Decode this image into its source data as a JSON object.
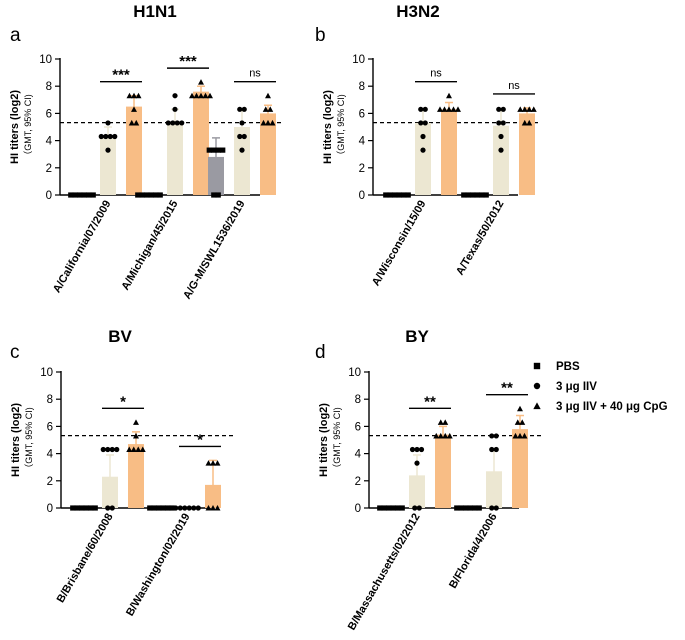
{
  "legend": {
    "entries": [
      {
        "label": "PBS",
        "shape": "square"
      },
      {
        "label": "3 μg IIV",
        "shape": "circle"
      },
      {
        "label": "3 μg IIV + 40 μg CpG",
        "shape": "triangle"
      }
    ]
  },
  "colors": {
    "pbs": "#9a9aa2",
    "iiv": "#ece7d2",
    "cpg": "#f8bd85",
    "marker": "#000000",
    "threshold": "#000000"
  },
  "chart_data": [
    {
      "type": "bar",
      "panel_letter": "a",
      "title": "H1N1",
      "ylabel": "HI titers (log2)",
      "ylabel2": "（GMT,  95% CI)",
      "ylim": [
        0,
        10
      ],
      "yticks": [
        "0",
        "2",
        "4",
        "6",
        "8",
        "10"
      ],
      "threshold": 5.32,
      "categories": [
        "A/California/07/2009",
        "A/Michigan/45/2015",
        "A/G-M/SWL1536/2019"
      ],
      "series": [
        {
          "name": "PBS",
          "values": [
            0,
            0,
            2.8
          ],
          "errors": [
            0,
            0,
            1.4
          ],
          "points": [
            [
              0,
              0,
              0,
              0,
              0,
              0
            ],
            [
              0,
              0,
              0,
              0,
              0,
              0
            ],
            [
              0,
              3.3,
              3.3,
              3.3,
              3.3,
              0
            ]
          ]
        },
        {
          "name": "3 μg IIV",
          "values": [
            4.3,
            5.3,
            5.0
          ],
          "errors": [
            0.7,
            1.0,
            1.3
          ],
          "points": [
            [
              5.3,
              4.3,
              4.3,
              4.3,
              4.3,
              3.3
            ],
            [
              7.3,
              6.3,
              5.3,
              5.3,
              5.3,
              5.3
            ],
            [
              6.3,
              6.3,
              5.3,
              4.3,
              4.3,
              3.3
            ]
          ]
        },
        {
          "name": "3 μg IIV + 40 μg CpG",
          "values": [
            6.5,
            7.6,
            6.0
          ],
          "errors": [
            0.8,
            0.4,
            0.6
          ],
          "points": [
            [
              7.3,
              7.3,
              7.3,
              6.3,
              5.3,
              5.3
            ],
            [
              8.3,
              7.3,
              7.3,
              7.3,
              7.3,
              7.3
            ],
            [
              7.3,
              6.3,
              6.3,
              5.3,
              5.3,
              5.3
            ]
          ]
        }
      ],
      "significance": [
        "***",
        "***",
        "ns"
      ]
    },
    {
      "type": "bar",
      "panel_letter": "b",
      "title": "H3N2",
      "ylabel": "HI titers (log2)",
      "ylabel2": "（GMT,  95% CI)",
      "ylim": [
        0,
        10
      ],
      "yticks": [
        "0",
        "2",
        "4",
        "6",
        "8",
        "10"
      ],
      "threshold": 5.32,
      "categories": [
        "A/Wisconsin/15/09",
        "A/Texas/50/2012"
      ],
      "series": [
        {
          "name": "PBS",
          "values": [
            0,
            0
          ],
          "errors": [
            0,
            0
          ],
          "points": [
            [
              0,
              0,
              0,
              0,
              0,
              0
            ],
            [
              0,
              0,
              0,
              0,
              0,
              0
            ]
          ]
        },
        {
          "name": "3 μg IIV",
          "values": [
            5.3,
            5.1
          ],
          "errors": [
            0.9,
            1.1
          ],
          "points": [
            [
              6.3,
              6.3,
              5.3,
              5.3,
              4.3,
              3.3
            ],
            [
              6.3,
              6.3,
              5.3,
              5.3,
              4.3,
              3.3
            ]
          ]
        },
        {
          "name": "3 μg IIV + 40 μg CpG",
          "values": [
            6.3,
            6.0
          ],
          "errors": [
            0.5,
            0.4
          ],
          "points": [
            [
              7.3,
              6.3,
              6.3,
              6.3,
              6.3,
              6.3
            ],
            [
              6.3,
              6.3,
              6.3,
              6.3,
              5.3,
              5.3
            ]
          ]
        }
      ],
      "significance": [
        "ns",
        "ns"
      ]
    },
    {
      "type": "bar",
      "panel_letter": "c",
      "title": "BV",
      "ylabel": "HI titers (log2)",
      "ylabel2": "（GMT,  95% CI)",
      "ylim": [
        0,
        10
      ],
      "yticks": [
        "0",
        "2",
        "4",
        "6",
        "8",
        "10"
      ],
      "threshold": 5.32,
      "categories": [
        "B/Brisbane/60/2008",
        "B/Washington/02/2019"
      ],
      "series": [
        {
          "name": "PBS",
          "values": [
            0,
            0
          ],
          "errors": [
            0,
            0
          ],
          "points": [
            [
              0,
              0,
              0,
              0,
              0,
              0
            ],
            [
              0,
              0,
              0,
              0,
              0,
              0
            ]
          ]
        },
        {
          "name": "3 μg IIV",
          "values": [
            2.3,
            0
          ],
          "errors": [
            1.6,
            0
          ],
          "points": [
            [
              4.3,
              4.3,
              4.3,
              4.3,
              0,
              0
            ],
            [
              0,
              0,
              0,
              0,
              0,
              0
            ]
          ]
        },
        {
          "name": "3 μg IIV + 40 μg CpG",
          "values": [
            4.7,
            1.7
          ],
          "errors": [
            0.9,
            1.8
          ],
          "points": [
            [
              6.3,
              5.3,
              4.3,
              4.3,
              4.3,
              4.3
            ],
            [
              3.3,
              3.3,
              3.3,
              0,
              0,
              0
            ]
          ]
        }
      ],
      "significance": [
        "*",
        "*"
      ]
    },
    {
      "type": "bar",
      "panel_letter": "d",
      "title": "BY",
      "ylabel": "HI titers (log2)",
      "ylabel2": "（GMT,  95% CI)",
      "ylim": [
        0,
        10
      ],
      "yticks": [
        "0",
        "2",
        "4",
        "6",
        "8",
        "10"
      ],
      "threshold": 5.32,
      "categories": [
        "B/Massachusetts/02/2012",
        "B/Florida/4/2006"
      ],
      "series": [
        {
          "name": "PBS",
          "values": [
            0,
            0
          ],
          "errors": [
            0,
            0
          ],
          "points": [
            [
              0,
              0,
              0,
              0,
              0,
              0
            ],
            [
              0,
              0,
              0,
              0,
              0,
              0
            ]
          ]
        },
        {
          "name": "3 μg IIV",
          "values": [
            2.4,
            2.7
          ],
          "errors": [
            1.5,
            1.6
          ],
          "points": [
            [
              4.3,
              4.3,
              4.3,
              3.3,
              0,
              0
            ],
            [
              5.3,
              5.3,
              4.3,
              4.3,
              0,
              0
            ]
          ]
        },
        {
          "name": "3 μg IIV + 40 μg CpG",
          "values": [
            5.4,
            5.8
          ],
          "errors": [
            0.6,
            1.0
          ],
          "points": [
            [
              6.3,
              6.3,
              5.3,
              5.3,
              5.3,
              5.3
            ],
            [
              7.3,
              6.3,
              6.3,
              5.3,
              5.3,
              5.3
            ]
          ]
        }
      ],
      "significance": [
        "**",
        "**"
      ]
    }
  ]
}
